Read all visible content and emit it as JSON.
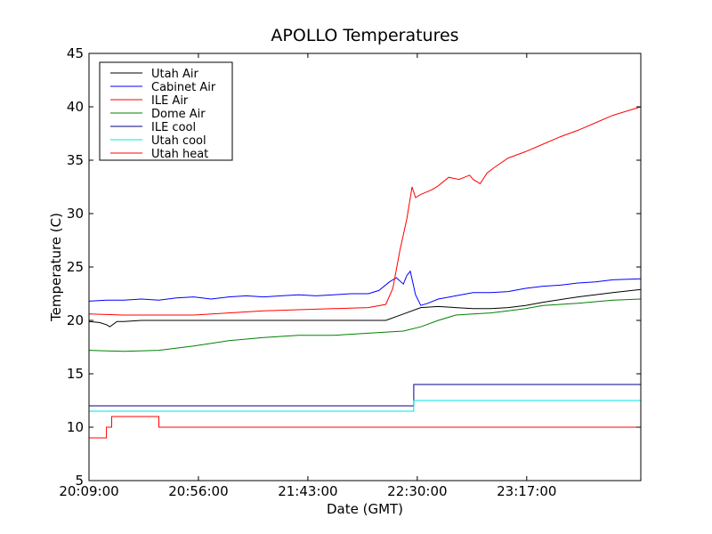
{
  "chart_data": {
    "type": "line",
    "title": "APOLLO Temperatures",
    "xlabel": "Date (GMT)",
    "ylabel": "Temperature (C)",
    "xlim": [
      0,
      15.8
    ],
    "ylim": [
      5,
      45
    ],
    "x_ticks": [
      {
        "value": 0,
        "label": "20:09:00"
      },
      {
        "value": 3.133,
        "label": "20:56:00"
      },
      {
        "value": 6.267,
        "label": "21:43:00"
      },
      {
        "value": 9.4,
        "label": "22:30:00"
      },
      {
        "value": 12.533,
        "label": "23:17:00"
      }
    ],
    "y_ticks": [
      5,
      10,
      15,
      20,
      25,
      30,
      35,
      40,
      45
    ],
    "legend_position": "top-left",
    "series": [
      {
        "name": "Utah Air",
        "color": "#000000",
        "x": [
          0,
          0.3,
          0.5,
          0.6,
          0.8,
          1.0,
          1.5,
          2.0,
          3.0,
          4.0,
          5.0,
          6.0,
          7.0,
          8.0,
          8.5,
          9.0,
          9.5,
          10.0,
          10.5,
          11.0,
          11.5,
          12.0,
          12.5,
          13.0,
          14.0,
          15.0,
          15.8
        ],
        "values": [
          19.9,
          19.8,
          19.6,
          19.4,
          19.9,
          19.9,
          20.0,
          20.0,
          20.0,
          20.0,
          20.0,
          20.0,
          20.0,
          20.0,
          20.0,
          20.6,
          21.2,
          21.3,
          21.2,
          21.1,
          21.1,
          21.2,
          21.4,
          21.7,
          22.2,
          22.6,
          22.9
        ]
      },
      {
        "name": "Cabinet Air",
        "color": "#0000ff",
        "x": [
          0,
          0.5,
          1.0,
          1.5,
          2.0,
          2.5,
          3.0,
          3.5,
          4.0,
          4.5,
          5.0,
          5.5,
          6.0,
          6.5,
          7.0,
          7.5,
          8.0,
          8.3,
          8.6,
          8.8,
          9.0,
          9.1,
          9.2,
          9.35,
          9.5,
          9.7,
          10.0,
          10.5,
          11.0,
          11.5,
          12.0,
          12.5,
          13.0,
          13.5,
          14.0,
          14.5,
          15.0,
          15.8
        ],
        "values": [
          21.8,
          21.9,
          21.9,
          22.0,
          21.9,
          22.1,
          22.2,
          22.0,
          22.2,
          22.3,
          22.2,
          22.3,
          22.4,
          22.3,
          22.4,
          22.5,
          22.5,
          22.8,
          23.6,
          24.0,
          23.4,
          24.2,
          24.6,
          22.4,
          21.4,
          21.6,
          22.0,
          22.3,
          22.6,
          22.6,
          22.7,
          23.0,
          23.2,
          23.3,
          23.5,
          23.6,
          23.8,
          23.9
        ]
      },
      {
        "name": "ILE Air",
        "color": "#ff0000",
        "x": [
          0,
          1.0,
          2.0,
          3.0,
          4.0,
          5.0,
          6.0,
          7.0,
          8.0,
          8.5,
          8.7,
          8.9,
          9.1,
          9.25,
          9.35,
          9.5,
          9.8,
          10.0,
          10.3,
          10.6,
          10.9,
          11.0,
          11.2,
          11.4,
          11.6,
          12.0,
          12.5,
          13.0,
          13.5,
          14.0,
          14.5,
          15.0,
          15.8
        ],
        "values": [
          20.6,
          20.5,
          20.5,
          20.5,
          20.7,
          20.9,
          21.0,
          21.1,
          21.2,
          21.5,
          23.0,
          26.5,
          29.5,
          32.5,
          31.5,
          31.8,
          32.2,
          32.6,
          33.4,
          33.2,
          33.6,
          33.2,
          32.8,
          33.8,
          34.3,
          35.2,
          35.8,
          36.5,
          37.2,
          37.8,
          38.5,
          39.2,
          40.0
        ]
      },
      {
        "name": "Dome Air",
        "color": "#008000",
        "x": [
          0,
          1.0,
          2.0,
          3.0,
          4.0,
          5.0,
          6.0,
          7.0,
          8.0,
          9.0,
          9.5,
          10.0,
          10.5,
          11.0,
          11.5,
          12.0,
          12.5,
          13.0,
          14.0,
          15.0,
          15.8
        ],
        "values": [
          17.2,
          17.1,
          17.2,
          17.6,
          18.1,
          18.4,
          18.6,
          18.6,
          18.8,
          19.0,
          19.4,
          20.0,
          20.5,
          20.6,
          20.7,
          20.9,
          21.1,
          21.4,
          21.6,
          21.9,
          22.0
        ]
      },
      {
        "name": "ILE cool",
        "color": "#00008b",
        "x": [
          0,
          9.3,
          9.3,
          15.8
        ],
        "values": [
          12.0,
          12.0,
          14.0,
          14.0
        ]
      },
      {
        "name": "Utah cool",
        "color": "#00e5e5",
        "x": [
          0,
          9.3,
          9.3,
          15.8
        ],
        "values": [
          11.5,
          11.5,
          12.5,
          12.5
        ]
      },
      {
        "name": "Utah heat",
        "color": "#ff0000",
        "x": [
          0,
          0.5,
          0.5,
          0.65,
          0.65,
          2.0,
          2.0,
          15.8
        ],
        "values": [
          9.0,
          9.0,
          10.0,
          10.0,
          11.0,
          11.0,
          10.0,
          10.0
        ]
      }
    ]
  }
}
